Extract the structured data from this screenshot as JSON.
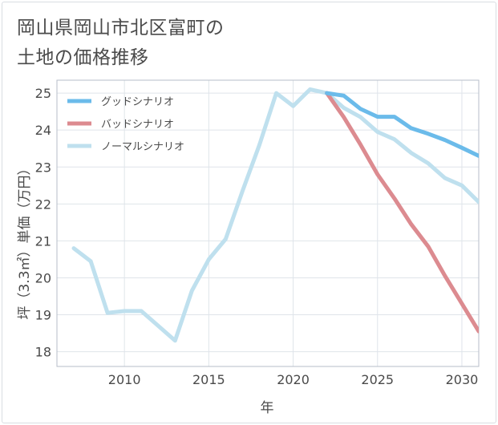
{
  "page": {
    "title_line1": "岡山県岡山市北区富町の",
    "title_line2": "土地の価格推移"
  },
  "chart_data": {
    "type": "line",
    "title": "岡山県岡山市北区富町の土地の価格推移",
    "xlabel": "年",
    "ylabel": "坪（3.3㎡）単価（万円）",
    "xlim": [
      2006,
      2031
    ],
    "ylim": [
      17.6,
      25.35
    ],
    "xticks": [
      2010,
      2015,
      2020,
      2025,
      2030
    ],
    "yticks": [
      18,
      19,
      20,
      21,
      22,
      23,
      24,
      25
    ],
    "legend_position": "top-left",
    "series": [
      {
        "name": "グッドシナリオ",
        "color": "#6bbbea",
        "x": [
          2022,
          2023,
          2024,
          2025,
          2026,
          2027,
          2028,
          2029,
          2030,
          2031
        ],
        "values": [
          25.0,
          24.93,
          24.57,
          24.36,
          24.36,
          24.05,
          23.9,
          23.73,
          23.52,
          23.3
        ]
      },
      {
        "name": "バッドシナリオ",
        "color": "#dc8b90",
        "x": [
          2022,
          2023,
          2024,
          2025,
          2026,
          2027,
          2028,
          2029,
          2030,
          2031
        ],
        "values": [
          25.0,
          24.35,
          23.6,
          22.8,
          22.15,
          21.45,
          20.85,
          20.05,
          19.3,
          18.55
        ]
      },
      {
        "name": "ノーマルシナリオ",
        "color": "#bfe0ee",
        "x": [
          2007,
          2008,
          2009,
          2010,
          2011,
          2012,
          2013,
          2014,
          2015,
          2016,
          2017,
          2018,
          2019,
          2020,
          2021,
          2022,
          2023,
          2024,
          2025,
          2026,
          2027,
          2028,
          2029,
          2030,
          2031
        ],
        "values": [
          20.8,
          20.45,
          19.05,
          19.1,
          19.1,
          18.7,
          18.3,
          19.65,
          20.5,
          21.05,
          22.35,
          23.6,
          25.0,
          24.65,
          25.1,
          25.0,
          24.6,
          24.35,
          23.95,
          23.75,
          23.38,
          23.1,
          22.7,
          22.5,
          22.05
        ]
      }
    ]
  }
}
